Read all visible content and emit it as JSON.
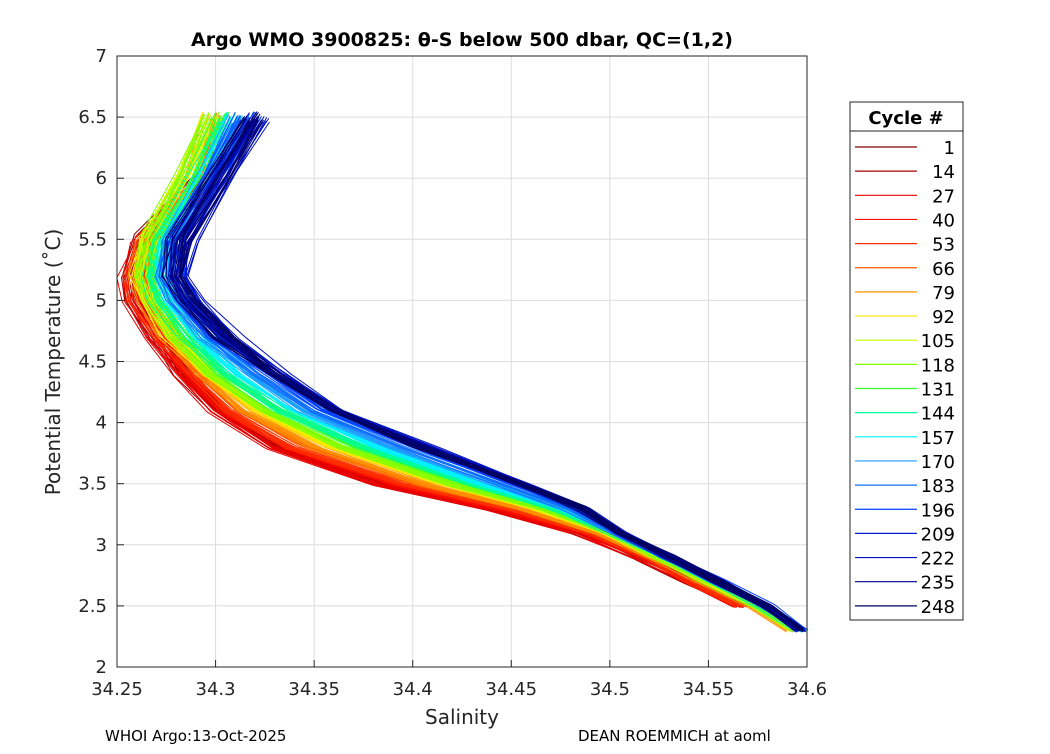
{
  "chart_data": {
    "type": "line",
    "title": "Argo WMO 3900825: θ-S below 500 dbar,  QC=(1,2)",
    "xlabel": "Salinity",
    "ylabel": "Potential Temperature (˚C)",
    "xlim": [
      34.25,
      34.6
    ],
    "ylim": [
      2,
      7
    ],
    "xticks": [
      "34.25",
      "34.3",
      "34.35",
      "34.4",
      "34.45",
      "34.5",
      "34.55",
      "34.6"
    ],
    "yticks": [
      "2",
      "2.5",
      "3",
      "3.5",
      "4",
      "4.5",
      "5",
      "5.5",
      "6",
      "6.5",
      "7"
    ],
    "grid": true,
    "legend_title": "Cycle #",
    "legend_position": "outside-right",
    "theta_grid": [
      6.5,
      6.0,
      5.5,
      5.2,
      5.0,
      4.7,
      4.4,
      4.1,
      3.8,
      3.5,
      3.3,
      3.1,
      2.9,
      2.7,
      2.5,
      2.3
    ],
    "series": [
      {
        "name": "1",
        "color": "#800000",
        "salinity": [
          null,
          34.297,
          34.266,
          34.258,
          34.26,
          34.272,
          34.284,
          34.302,
          34.332,
          34.387,
          34.442,
          34.487,
          34.517,
          34.542,
          34.567,
          null
        ]
      },
      {
        "name": "14",
        "color": "#a00000",
        "salinity": [
          null,
          34.294,
          34.264,
          34.256,
          34.258,
          34.27,
          34.282,
          34.3,
          34.33,
          34.384,
          34.44,
          34.484,
          34.515,
          34.54,
          34.566,
          null
        ]
      },
      {
        "name": "27",
        "color": "#e80000",
        "salinity": [
          null,
          34.293,
          34.262,
          34.255,
          34.257,
          34.268,
          34.281,
          34.299,
          34.329,
          34.383,
          34.438,
          34.483,
          34.514,
          34.539,
          34.565,
          null
        ]
      },
      {
        "name": "40",
        "color": "#ff1000",
        "salinity": [
          null,
          34.295,
          34.265,
          34.258,
          34.26,
          34.272,
          34.285,
          34.304,
          34.335,
          34.39,
          34.445,
          34.488,
          34.516,
          34.54,
          34.566,
          null
        ]
      },
      {
        "name": "53",
        "color": "#ff3000",
        "salinity": [
          null,
          34.296,
          34.266,
          34.26,
          34.262,
          34.274,
          34.288,
          34.307,
          34.339,
          34.395,
          34.448,
          34.49,
          34.518,
          34.542,
          34.567,
          null
        ]
      },
      {
        "name": "66",
        "color": "#ff5a00",
        "salinity": [
          34.298,
          34.29,
          34.266,
          34.26,
          34.263,
          34.276,
          34.29,
          34.31,
          34.345,
          34.4,
          34.452,
          34.492,
          34.52,
          34.545,
          34.57,
          34.59
        ]
      },
      {
        "name": "79",
        "color": "#ff9000",
        "salinity": [
          34.3,
          34.288,
          34.267,
          34.262,
          34.265,
          34.277,
          34.293,
          34.315,
          34.352,
          34.407,
          34.457,
          34.495,
          34.522,
          34.547,
          34.572,
          34.592
        ]
      },
      {
        "name": "92",
        "color": "#ffe600",
        "salinity": [
          34.298,
          34.286,
          34.267,
          34.262,
          34.266,
          34.278,
          34.295,
          34.32,
          34.358,
          34.413,
          34.46,
          34.497,
          34.523,
          34.548,
          34.573,
          34.593
        ]
      },
      {
        "name": "105",
        "color": "#c8ff00",
        "salinity": [
          34.296,
          34.283,
          34.266,
          34.262,
          34.267,
          34.279,
          34.297,
          34.323,
          34.362,
          34.417,
          34.463,
          34.499,
          34.524,
          34.549,
          34.574,
          34.594
        ]
      },
      {
        "name": "118",
        "color": "#80ff00",
        "salinity": [
          34.298,
          34.284,
          34.267,
          34.263,
          34.268,
          34.28,
          34.298,
          34.325,
          34.365,
          34.42,
          34.465,
          34.5,
          34.525,
          34.55,
          34.575,
          34.595
        ]
      },
      {
        "name": "131",
        "color": "#33ff33",
        "salinity": [
          34.302,
          34.288,
          34.27,
          34.265,
          34.27,
          34.283,
          34.302,
          34.33,
          34.37,
          34.425,
          34.468,
          34.501,
          34.526,
          34.551,
          34.576,
          34.596
        ]
      },
      {
        "name": "144",
        "color": "#00ff99",
        "salinity": [
          34.305,
          34.29,
          34.272,
          34.267,
          34.272,
          34.286,
          34.306,
          34.334,
          34.376,
          34.43,
          34.471,
          34.502,
          34.527,
          34.552,
          34.577,
          34.596
        ]
      },
      {
        "name": "157",
        "color": "#00f0ff",
        "salinity": [
          34.308,
          34.293,
          34.274,
          34.27,
          34.276,
          34.29,
          34.31,
          34.339,
          34.382,
          34.435,
          34.474,
          34.503,
          34.528,
          34.553,
          34.578,
          34.597
        ]
      },
      {
        "name": "170",
        "color": "#1aa0ff",
        "salinity": [
          34.311,
          34.295,
          34.277,
          34.273,
          34.279,
          34.294,
          34.316,
          34.344,
          34.388,
          34.44,
          34.477,
          34.503,
          34.528,
          34.553,
          34.578,
          34.597
        ]
      },
      {
        "name": "183",
        "color": "#1070ff",
        "salinity": [
          34.314,
          34.298,
          34.279,
          34.276,
          34.282,
          34.298,
          34.321,
          34.35,
          34.395,
          34.446,
          34.48,
          34.504,
          34.529,
          34.554,
          34.579,
          34.597
        ]
      },
      {
        "name": "196",
        "color": "#0040ff",
        "salinity": [
          34.317,
          34.3,
          34.281,
          34.278,
          34.285,
          34.302,
          34.326,
          34.355,
          34.4,
          34.45,
          34.483,
          34.505,
          34.53,
          34.555,
          34.58,
          34.597
        ]
      },
      {
        "name": "209",
        "color": "#0020d0",
        "salinity": [
          34.32,
          34.302,
          34.283,
          34.28,
          34.287,
          34.305,
          34.33,
          34.36,
          34.405,
          34.455,
          34.485,
          34.505,
          34.53,
          34.555,
          34.58,
          34.597
        ]
      },
      {
        "name": "222",
        "color": "#0010c0",
        "salinity": [
          34.322,
          34.303,
          34.285,
          34.282,
          34.29,
          34.308,
          34.334,
          34.364,
          34.41,
          34.458,
          34.487,
          34.506,
          34.531,
          34.556,
          34.58,
          34.597
        ]
      },
      {
        "name": "235",
        "color": "#000090",
        "salinity": [
          34.321,
          34.302,
          34.283,
          34.28,
          34.288,
          34.306,
          34.331,
          34.361,
          34.406,
          34.456,
          34.486,
          34.505,
          34.532,
          34.558,
          34.578,
          null
        ]
      },
      {
        "name": "248",
        "color": "#000060",
        "salinity": [
          34.319,
          34.301,
          34.282,
          34.279,
          34.286,
          34.304,
          34.329,
          34.359,
          34.404,
          34.454,
          34.485,
          34.505,
          34.53,
          34.555,
          34.58,
          34.597
        ]
      }
    ]
  },
  "footer": {
    "left": "WHOI Argo:13-Oct-2025",
    "right": "DEAN ROEMMICH at aoml"
  }
}
